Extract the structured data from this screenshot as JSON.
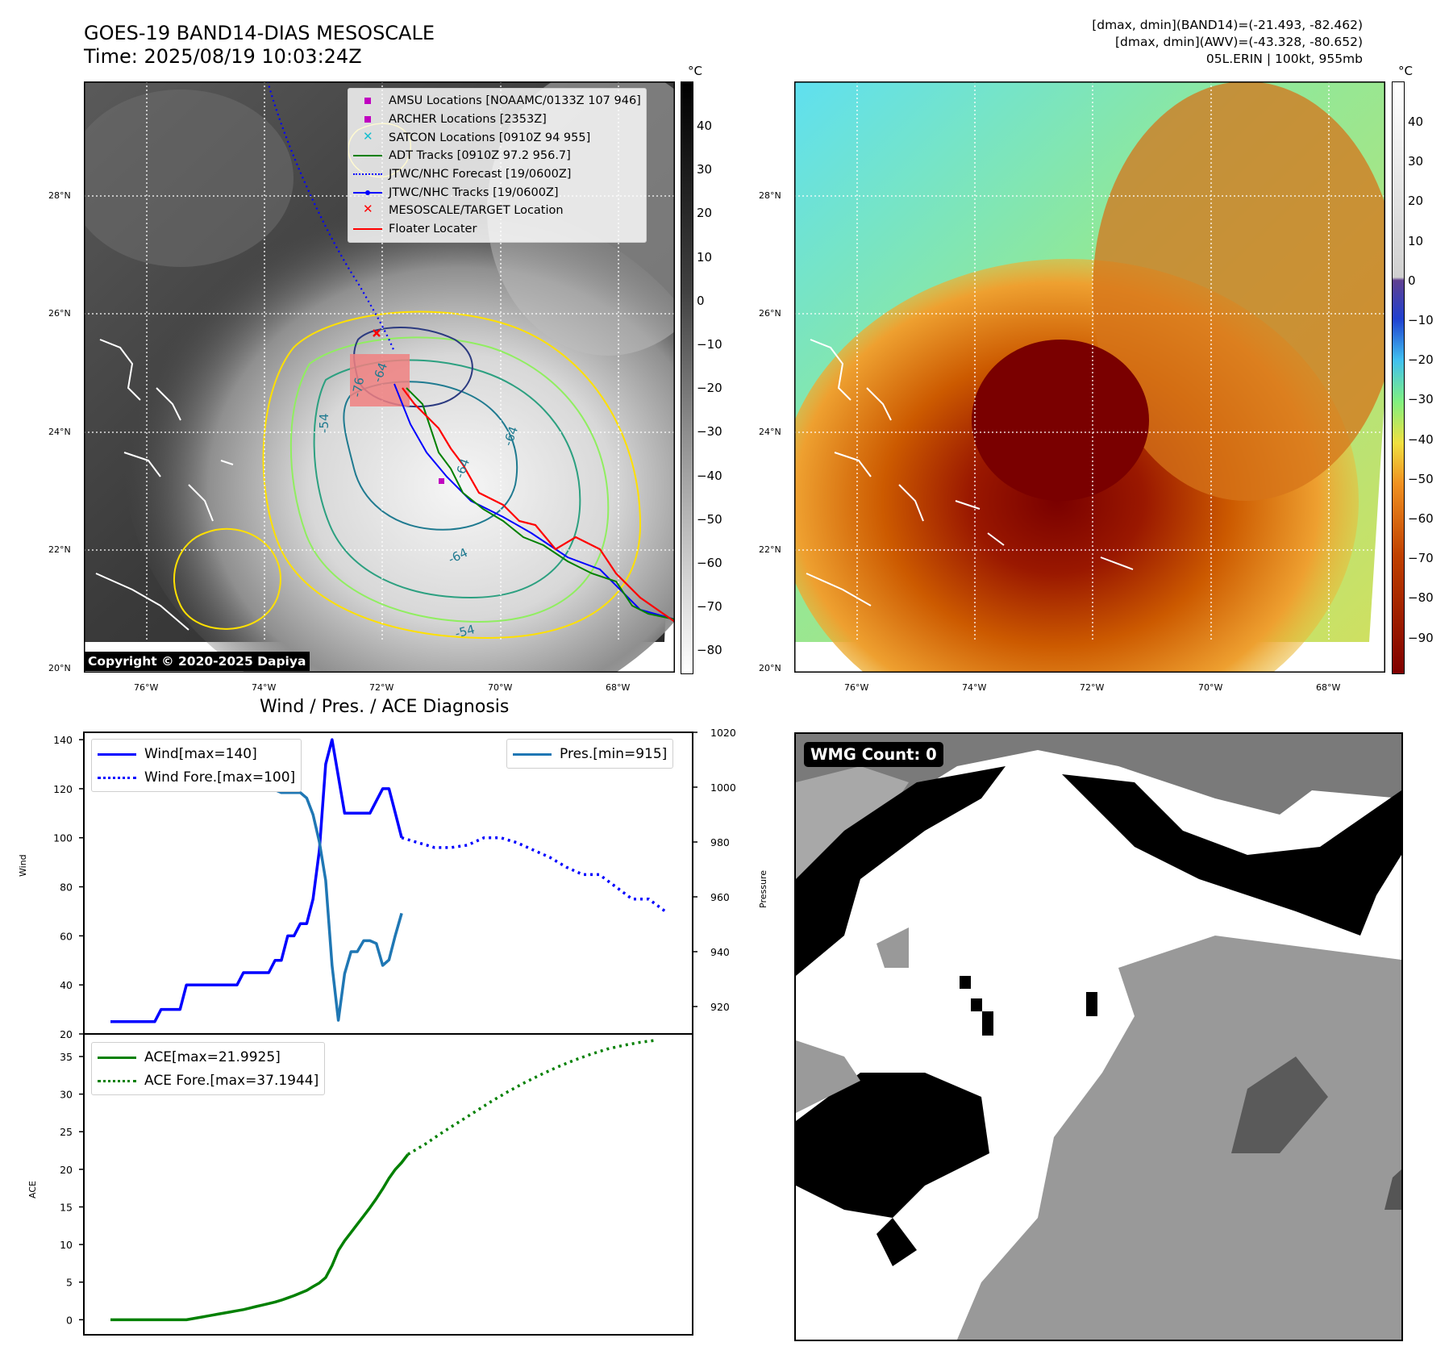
{
  "header": {
    "title_line1": "GOES-19 BAND14-DIAS MESOSCALE",
    "title_line2": "Time: 2025/08/19 10:03:24Z",
    "info_line1": "[dmax, dmin](BAND14)=(-21.493, -82.462)",
    "info_line2": "[dmax, dmin](AWV)=(-43.328, -80.652)",
    "info_line3": "05L.ERIN | 100kt, 955mb"
  },
  "map": {
    "lon_ticks": [
      "76°W",
      "74°W",
      "72°W",
      "70°W",
      "68°W"
    ],
    "lat_ticks": [
      "28°N",
      "26°N",
      "24°N",
      "22°N",
      "20°N"
    ],
    "copyright": "Copyright © 2020-2025 Dapiya",
    "contour_labels": [
      "-64",
      "-76",
      "-64",
      "-54",
      "-64",
      "-64",
      "-54"
    ],
    "legend": [
      {
        "label": "AMSU Locations [NOAAMC/0133Z 107 946]",
        "icon": "square-marker",
        "color": "#c000c0"
      },
      {
        "label": "ARCHER Locations [2353Z]",
        "icon": "square-marker",
        "color": "#c000c0"
      },
      {
        "label": "SATCON Locations [0910Z 94 955]",
        "icon": "x-marker",
        "color": "#17becf"
      },
      {
        "label": "ADT Tracks [0910Z 97.2 956.7]",
        "icon": "solid-line",
        "color": "#008000"
      },
      {
        "label": "JTWC/NHC Forecast [19/0600Z]",
        "icon": "dotted-line",
        "color": "#0000ff"
      },
      {
        "label": "JTWC/NHC Tracks [19/0600Z]",
        "icon": "line-dot",
        "color": "#0000ff"
      },
      {
        "label": "MESOSCALE/TARGET Location",
        "icon": "x-marker",
        "color": "#ff0000"
      },
      {
        "label": "Floater Locater",
        "icon": "solid-line",
        "color": "#ff0000"
      }
    ]
  },
  "colorbar_left": {
    "unit": "°C",
    "ticks": [
      "40",
      "30",
      "20",
      "10",
      "0",
      "−10",
      "−20",
      "−30",
      "−40",
      "−50",
      "−60",
      "−70",
      "−80"
    ]
  },
  "colorbar_right": {
    "unit": "°C",
    "ticks": [
      "40",
      "30",
      "20",
      "10",
      "0",
      "−10",
      "−20",
      "−30",
      "−40",
      "−50",
      "−60",
      "−70",
      "−80",
      "−90"
    ]
  },
  "wmg": {
    "label": "WMG Count: 0"
  },
  "chart_data": [
    {
      "type": "line",
      "title": "Wind / Pres. / ACE Diagnosis",
      "ylabel": "Wind",
      "y2label": "Pressure",
      "ylim": [
        20,
        143
      ],
      "y2lim": [
        910,
        1020
      ],
      "yticks": [
        "20",
        "40",
        "60",
        "80",
        "100",
        "120",
        "140"
      ],
      "y2ticks": [
        "920",
        "940",
        "960",
        "980",
        "1000",
        "1020"
      ],
      "series": [
        {
          "name": "Wind[max=140]",
          "color": "#0000ff",
          "style": "solid",
          "axis": "left",
          "values": [
            25,
            25,
            25,
            25,
            25,
            25,
            25,
            25,
            30,
            30,
            30,
            30,
            40,
            40,
            40,
            40,
            40,
            40,
            40,
            40,
            40,
            45,
            45,
            45,
            45,
            45,
            50,
            50,
            60,
            60,
            65,
            65,
            75,
            95,
            130,
            140,
            125,
            110,
            110,
            110,
            110,
            110,
            115,
            120,
            120,
            110,
            100
          ]
        },
        {
          "name": "Wind Fore.[max=100]",
          "color": "#0000ff",
          "style": "dotted",
          "axis": "left",
          "values": [
            100,
            98,
            96,
            96,
            97,
            100,
            100,
            98,
            95,
            92,
            88,
            85,
            85,
            80,
            75,
            75,
            70
          ]
        },
        {
          "name": "Pres.[min=915]",
          "color": "#1f77b4",
          "style": "solid",
          "axis": "right",
          "values": [
            1013,
            1013,
            1008,
            1007,
            1006,
            1006,
            1006,
            1006,
            1006,
            1006,
            1006,
            1004,
            1004,
            1004,
            1004,
            1004,
            1004,
            1002,
            1002,
            1002,
            1002,
            1001,
            1001,
            1001,
            1001,
            1001,
            999,
            998,
            998,
            998,
            998,
            996,
            990,
            980,
            966,
            935,
            915,
            932,
            940,
            940,
            944,
            944,
            943,
            935,
            937,
            946,
            954
          ]
        }
      ]
    },
    {
      "type": "line",
      "ylabel": "ACE",
      "ylim": [
        -2,
        38
      ],
      "yticks": [
        "0",
        "5",
        "10",
        "15",
        "20",
        "25",
        "30",
        "35"
      ],
      "series": [
        {
          "name": "ACE[max=21.9925]",
          "color": "#008000",
          "style": "solid",
          "values": [
            0,
            0,
            0,
            0,
            0,
            0,
            0,
            0,
            0,
            0,
            0,
            0,
            0,
            0.15,
            0.3,
            0.45,
            0.6,
            0.75,
            0.9,
            1.05,
            1.2,
            1.35,
            1.55,
            1.75,
            1.95,
            2.15,
            2.35,
            2.6,
            2.9,
            3.2,
            3.55,
            3.9,
            4.4,
            4.9,
            5.6,
            7.2,
            9.2,
            10.5,
            11.6,
            12.7,
            13.8,
            14.9,
            16.1,
            17.4,
            18.8,
            20.0,
            20.9,
            21.99
          ]
        },
        {
          "name": "ACE Fore.[max=37.1944]",
          "color": "#008000",
          "style": "dotted",
          "values": [
            21.99,
            23.3,
            24.8,
            26.2,
            27.6,
            29.0,
            30.3,
            31.5,
            32.6,
            33.6,
            34.5,
            35.3,
            36.0,
            36.5,
            36.9,
            37.19
          ]
        }
      ]
    }
  ]
}
